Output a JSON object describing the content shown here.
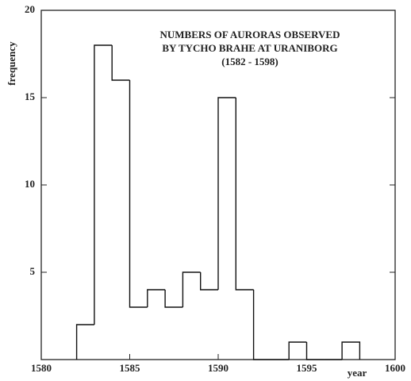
{
  "chart_data": {
    "type": "histogram",
    "title": [
      "NUMBERS OF AURORAS OBSERVED",
      "BY TYCHO BRAHE AT URANIBORG",
      "(1582 - 1598)"
    ],
    "xlabel": "year",
    "ylabel": "frequency",
    "bins": [
      1582,
      1583,
      1584,
      1585,
      1586,
      1587,
      1588,
      1589,
      1590,
      1591,
      1592,
      1593,
      1594,
      1595,
      1596,
      1597,
      1598
    ],
    "values": [
      2,
      18,
      16,
      3,
      4,
      3,
      5,
      4,
      15,
      4,
      0,
      0,
      1,
      0,
      0,
      1
    ],
    "color": "#111111",
    "xlim": [
      1580,
      1600
    ],
    "xticks": [
      1580,
      1585,
      1590,
      1595,
      1600
    ],
    "ylim": [
      0,
      20
    ],
    "yticks": [
      5,
      10,
      15,
      20
    ]
  }
}
